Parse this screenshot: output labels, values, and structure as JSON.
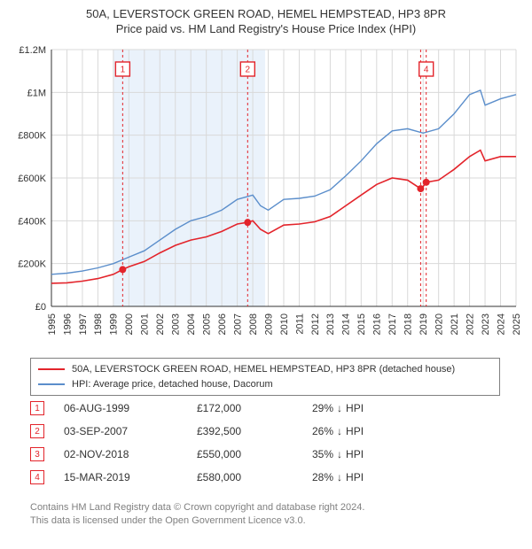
{
  "title": {
    "line1": "50A, LEVERSTOCK GREEN ROAD, HEMEL HEMPSTEAD, HP3 8PR",
    "line2": "Price paid vs. HM Land Registry's House Price Index (HPI)"
  },
  "chart": {
    "type": "line",
    "background_color": "#ffffff",
    "grid_color": "#d9d9d9",
    "axis_color": "#333333",
    "shaded_band": {
      "x_from": 1999.0,
      "x_to": 2008.8,
      "fill": "#eaf2fb"
    },
    "x": {
      "min": 1995,
      "max": 2025,
      "tick_step": 1,
      "ticks": [
        1995,
        1996,
        1997,
        1998,
        1999,
        2000,
        2001,
        2002,
        2003,
        2004,
        2005,
        2006,
        2007,
        2008,
        2009,
        2010,
        2011,
        2012,
        2013,
        2014,
        2015,
        2016,
        2017,
        2018,
        2019,
        2020,
        2021,
        2022,
        2023,
        2024,
        2025
      ],
      "label_rotation": -90,
      "label_fontsize": 11
    },
    "y": {
      "min": 0,
      "max": 1200000,
      "tick_step": 200000,
      "tick_labels": [
        "£0",
        "£200K",
        "£400K",
        "£600K",
        "£800K",
        "£1M",
        "£1.2M"
      ],
      "label_fontsize": 11
    },
    "series": [
      {
        "name": "property",
        "label": "50A, LEVERSTOCK GREEN ROAD, HEMEL HEMPSTEAD, HP3 8PR (detached house)",
        "color": "#e3242b",
        "line_width": 1.6,
        "data": [
          [
            1995,
            108000
          ],
          [
            1996,
            110000
          ],
          [
            1997,
            118000
          ],
          [
            1998,
            130000
          ],
          [
            1999,
            150000
          ],
          [
            1999.6,
            172000
          ],
          [
            2000,
            185000
          ],
          [
            2001,
            210000
          ],
          [
            2002,
            250000
          ],
          [
            2003,
            285000
          ],
          [
            2004,
            310000
          ],
          [
            2005,
            325000
          ],
          [
            2006,
            350000
          ],
          [
            2007,
            385000
          ],
          [
            2007.67,
            392500
          ],
          [
            2008,
            400000
          ],
          [
            2008.5,
            360000
          ],
          [
            2009,
            340000
          ],
          [
            2010,
            380000
          ],
          [
            2011,
            385000
          ],
          [
            2012,
            395000
          ],
          [
            2013,
            420000
          ],
          [
            2014,
            470000
          ],
          [
            2015,
            520000
          ],
          [
            2016,
            570000
          ],
          [
            2017,
            600000
          ],
          [
            2018,
            590000
          ],
          [
            2018.84,
            550000
          ],
          [
            2019,
            560000
          ],
          [
            2019.2,
            580000
          ],
          [
            2020,
            590000
          ],
          [
            2021,
            640000
          ],
          [
            2022,
            700000
          ],
          [
            2022.7,
            730000
          ],
          [
            2023,
            680000
          ],
          [
            2024,
            700000
          ],
          [
            2025,
            700000
          ]
        ]
      },
      {
        "name": "hpi",
        "label": "HPI: Average price, detached house, Dacorum",
        "color": "#5b8ecb",
        "line_width": 1.4,
        "data": [
          [
            1995,
            150000
          ],
          [
            1996,
            155000
          ],
          [
            1997,
            165000
          ],
          [
            1998,
            180000
          ],
          [
            1999,
            200000
          ],
          [
            2000,
            230000
          ],
          [
            2001,
            260000
          ],
          [
            2002,
            310000
          ],
          [
            2003,
            360000
          ],
          [
            2004,
            400000
          ],
          [
            2005,
            420000
          ],
          [
            2006,
            450000
          ],
          [
            2007,
            500000
          ],
          [
            2008,
            520000
          ],
          [
            2008.5,
            470000
          ],
          [
            2009,
            450000
          ],
          [
            2010,
            500000
          ],
          [
            2011,
            505000
          ],
          [
            2012,
            515000
          ],
          [
            2013,
            545000
          ],
          [
            2014,
            610000
          ],
          [
            2015,
            680000
          ],
          [
            2016,
            760000
          ],
          [
            2017,
            820000
          ],
          [
            2018,
            830000
          ],
          [
            2019,
            810000
          ],
          [
            2020,
            830000
          ],
          [
            2021,
            900000
          ],
          [
            2022,
            990000
          ],
          [
            2022.7,
            1010000
          ],
          [
            2023,
            940000
          ],
          [
            2024,
            970000
          ],
          [
            2025,
            990000
          ]
        ]
      }
    ],
    "sale_markers": [
      {
        "n": "1",
        "x": 1999.6,
        "y": 172000,
        "dot": true
      },
      {
        "n": "2",
        "x": 2007.67,
        "y": 392500,
        "dot": true
      },
      {
        "n": "3",
        "x": 2018.84,
        "y": 550000,
        "dot": true,
        "hide_flag": true
      },
      {
        "n": "4",
        "x": 2019.2,
        "y": 580000,
        "dot": true
      }
    ],
    "marker_style": {
      "box_stroke": "#e3242b",
      "box_fill": "#ffffff",
      "box_size": 16,
      "guide_color": "#e3242b",
      "guide_dash": "3,3",
      "dot_fill": "#e3242b",
      "dot_radius": 4
    }
  },
  "legend": {
    "items": [
      {
        "color": "#e3242b",
        "text": "50A, LEVERSTOCK GREEN ROAD, HEMEL HEMPSTEAD, HP3 8PR (detached house)"
      },
      {
        "color": "#5b8ecb",
        "text": "HPI: Average price, detached house, Dacorum"
      }
    ]
  },
  "sales_table": {
    "rows": [
      {
        "n": "1",
        "date": "06-AUG-1999",
        "price": "£172,000",
        "delta": "29%",
        "arrow": "↓",
        "suffix": "HPI"
      },
      {
        "n": "2",
        "date": "03-SEP-2007",
        "price": "£392,500",
        "delta": "26%",
        "arrow": "↓",
        "suffix": "HPI"
      },
      {
        "n": "3",
        "date": "02-NOV-2018",
        "price": "£550,000",
        "delta": "35%",
        "arrow": "↓",
        "suffix": "HPI"
      },
      {
        "n": "4",
        "date": "15-MAR-2019",
        "price": "£580,000",
        "delta": "28%",
        "arrow": "↓",
        "suffix": "HPI"
      }
    ]
  },
  "footer": {
    "line1": "Contains HM Land Registry data © Crown copyright and database right 2024.",
    "line2": "This data is licensed under the Open Government Licence v3.0."
  }
}
